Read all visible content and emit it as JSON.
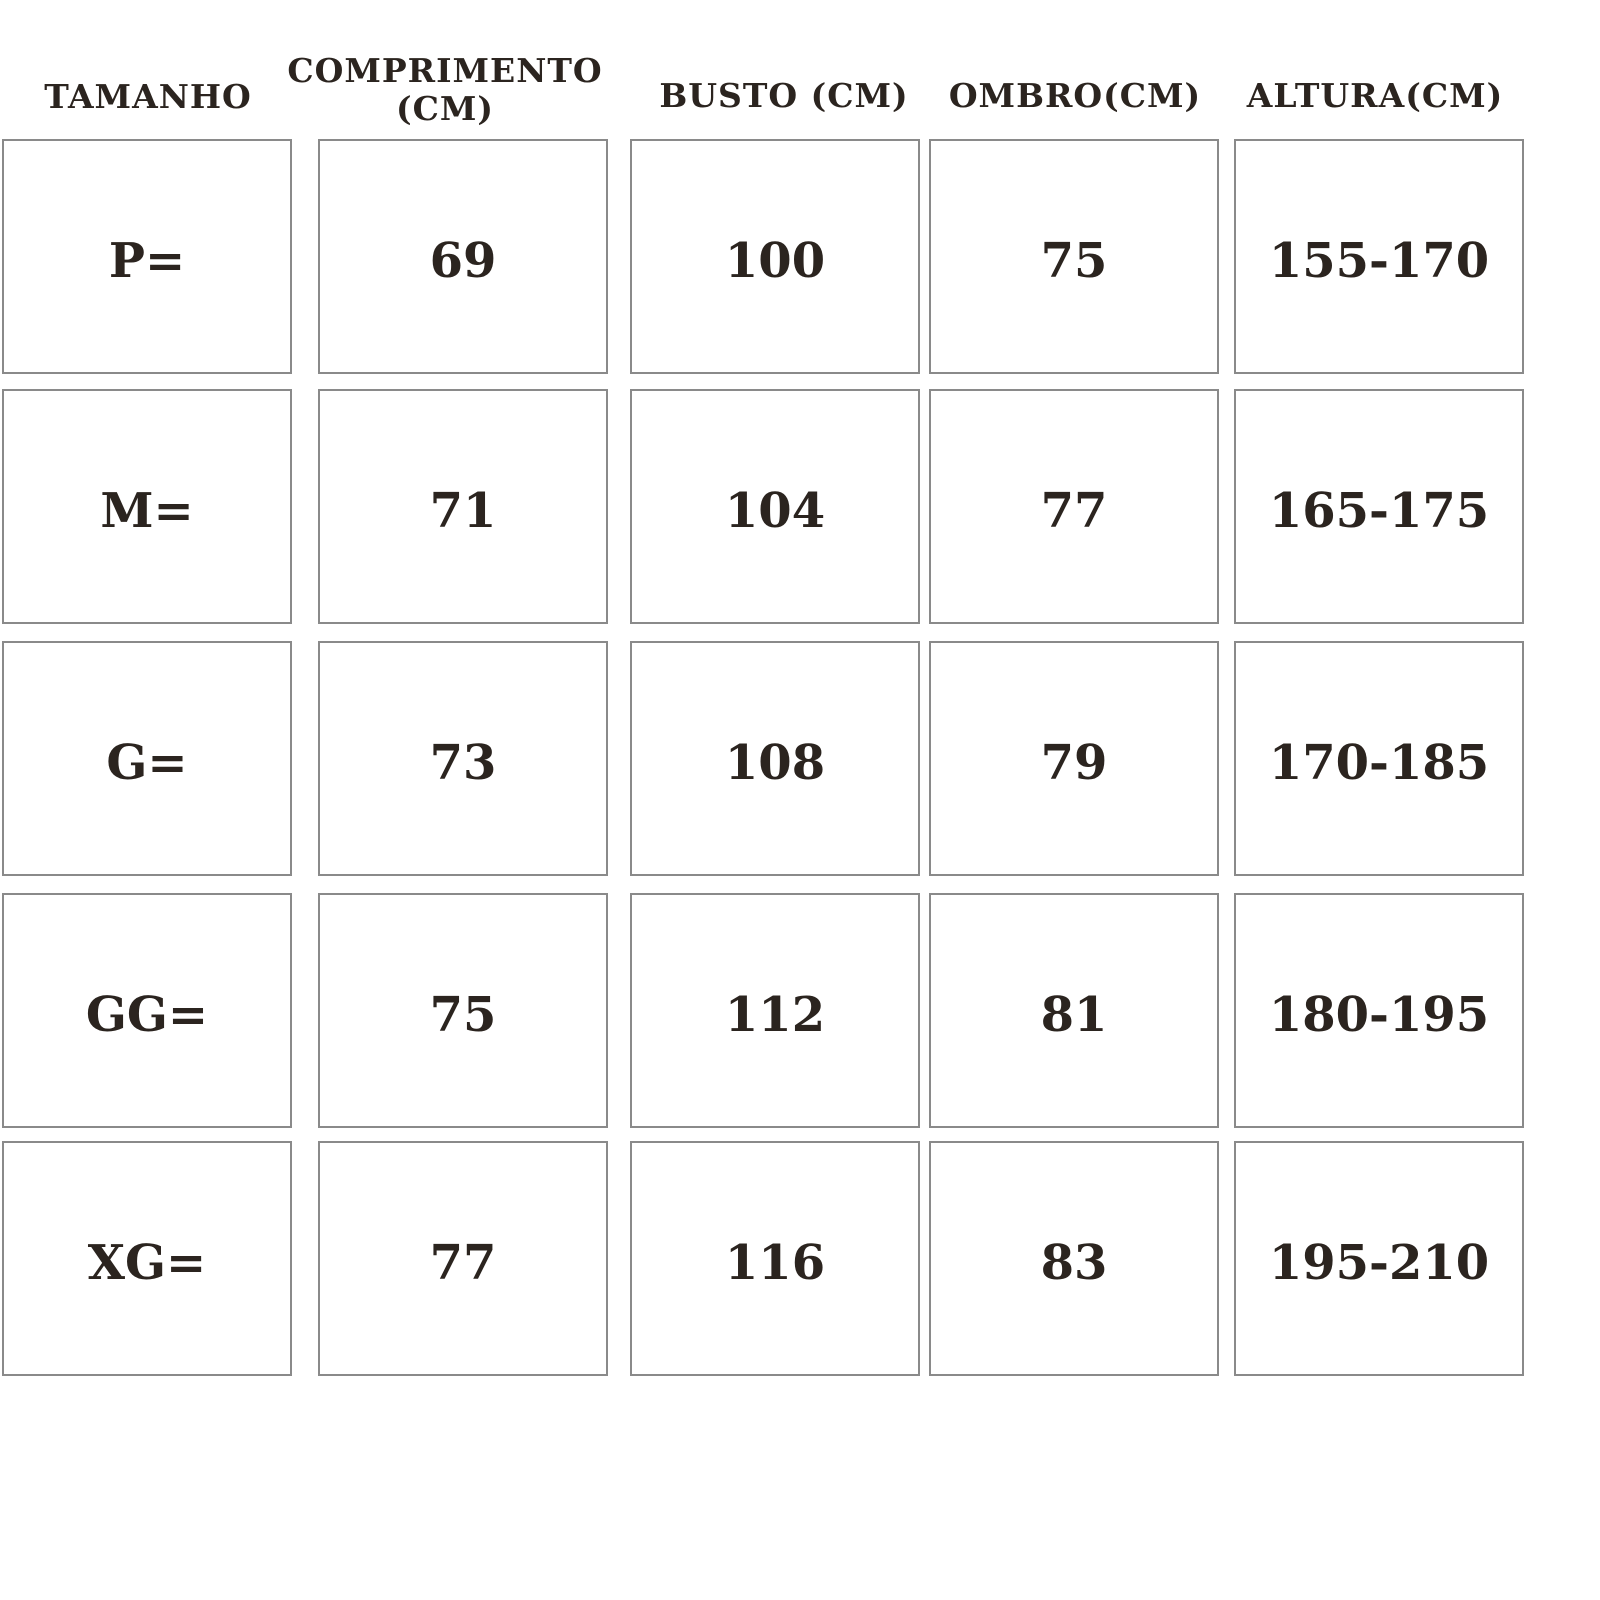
{
  "headers": {
    "size": "TAMANHO",
    "length_line1": "COMPRIMENTO",
    "length_line2": "(CM)",
    "bust": "BUSTO (CM)",
    "shoulder": "OMBRO(CM)",
    "height": "ALTURA(CM)"
  },
  "rows": [
    {
      "size": "P=",
      "length": "69",
      "bust": "100",
      "shoulder": "75",
      "height": "155-170"
    },
    {
      "size": "M=",
      "length": "71",
      "bust": "104",
      "shoulder": "77",
      "height": "165-175"
    },
    {
      "size": "G=",
      "length": "73",
      "bust": "108",
      "shoulder": "79",
      "height": "170-185"
    },
    {
      "size": "GG=",
      "length": "75",
      "bust": "112",
      "shoulder": "81",
      "height": "180-195"
    },
    {
      "size": "XG=",
      "length": "77",
      "bust": "116",
      "shoulder": "83",
      "height": "195-210"
    }
  ]
}
